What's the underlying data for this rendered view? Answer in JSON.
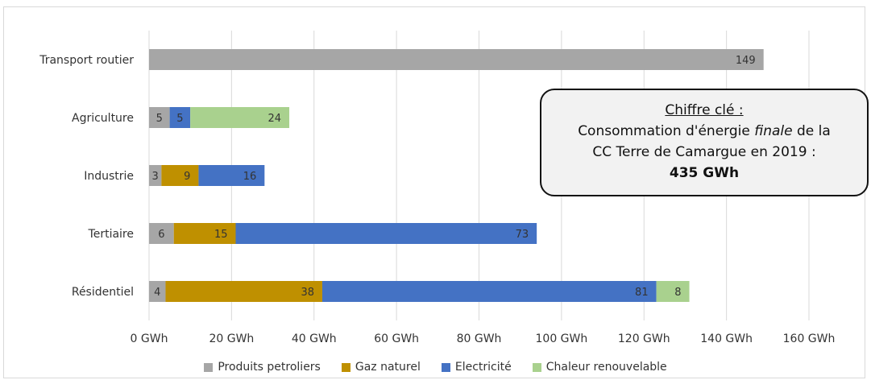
{
  "chart_data": {
    "type": "bar",
    "orientation": "horizontal",
    "stacked": true,
    "categories": [
      "Transport routier",
      "Agriculture",
      "Industrie",
      "Tertiaire",
      "Résidentiel"
    ],
    "series": [
      {
        "name": "Produits petroliers",
        "color": "#a6a6a6",
        "values": [
          149,
          5,
          3,
          6,
          4
        ],
        "labels": [
          "149",
          "5",
          "3",
          "6",
          "4"
        ]
      },
      {
        "name": "Gaz naturel",
        "color": "#bf9000",
        "values": [
          0,
          0,
          9,
          15,
          38
        ],
        "labels": [
          "",
          "",
          "9",
          "15",
          "38"
        ]
      },
      {
        "name": "Electricité",
        "color": "#4472c4",
        "values": [
          0,
          5,
          16,
          73,
          81
        ],
        "labels": [
          "",
          "5",
          "16",
          "73",
          "81"
        ]
      },
      {
        "name": "Chaleur renouvelable",
        "color": "#a9d18e",
        "values": [
          0,
          24,
          0,
          0,
          8
        ],
        "labels": [
          "",
          "24",
          "",
          "",
          "8"
        ]
      }
    ],
    "xlim": [
      0,
      160
    ],
    "xticks": [
      "0 GWh",
      "20 GWh",
      "40 GWh",
      "60 GWh",
      "80 GWh",
      "100 GWh",
      "120 GWh",
      "140 GWh",
      "160 GWh"
    ],
    "grid": true,
    "legend_position": "bottom"
  },
  "callout": {
    "title": "Chiffre clé :",
    "line1_pre": "Consommation d'énergie ",
    "line1_em": "finale",
    "line1_post": " de la",
    "line2": "CC Terre de Camargue en 2019 :",
    "total": "435 GWh"
  }
}
